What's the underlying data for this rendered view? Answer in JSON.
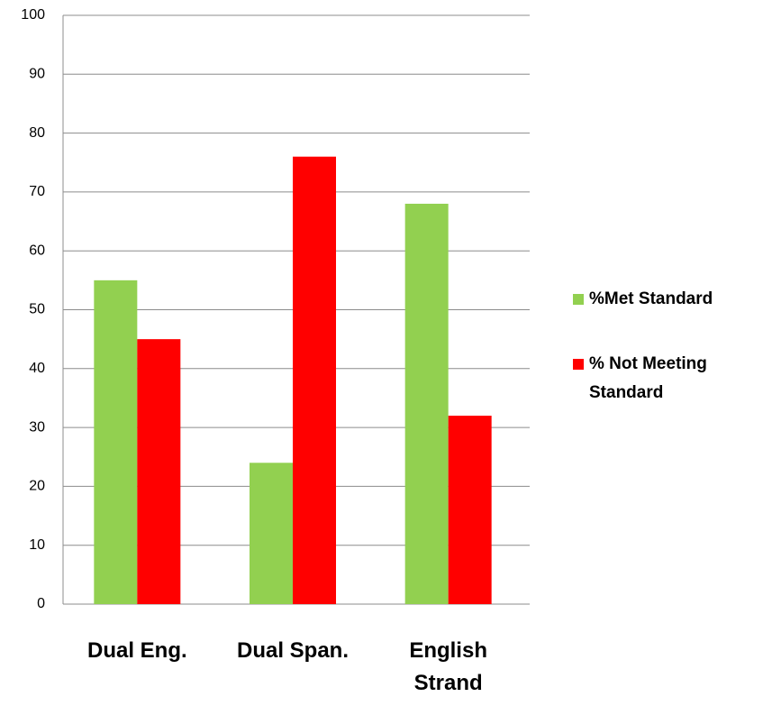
{
  "chart_data": {
    "type": "bar",
    "categories": [
      "Dual Eng.",
      "Dual Span.",
      "English Strand"
    ],
    "series": [
      {
        "name": "%Met Standard",
        "color": "#92d050",
        "values": [
          55,
          24,
          68
        ]
      },
      {
        "name": "% Not Meeting Standard",
        "color": "#ff0000",
        "values": [
          45,
          76,
          32
        ]
      }
    ],
    "ylim": [
      0,
      100
    ],
    "yticks": [
      0,
      10,
      20,
      30,
      40,
      50,
      60,
      70,
      80,
      90,
      100
    ],
    "grid": true,
    "legend": "right"
  }
}
